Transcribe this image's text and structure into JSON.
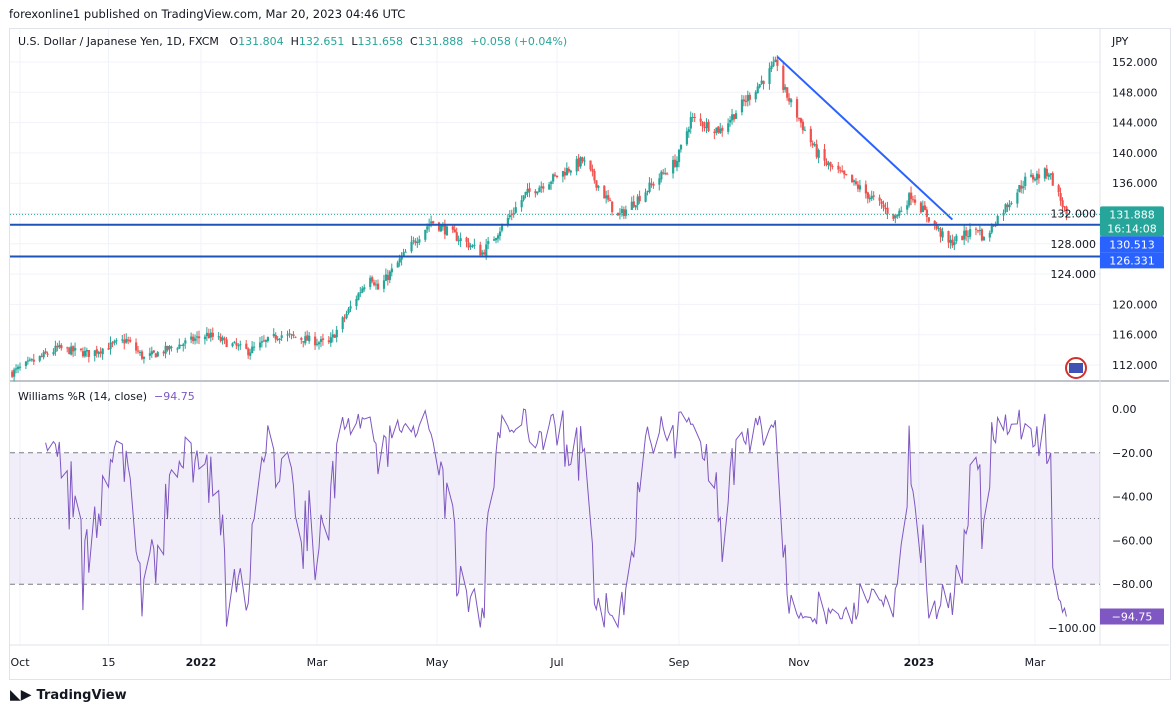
{
  "published": "forexonline1 published on TradingView.com, Mar 20, 2023 04:46 UTC",
  "legend": {
    "symbol": "U.S. Dollar / Japanese Yen, 1D, FXCM",
    "o_label": "O",
    "o": "131.804",
    "h_label": "H",
    "h": "132.651",
    "l_label": "L",
    "l": "131.658",
    "c_label": "C",
    "c": "131.888",
    "change": "+0.058 (+0.04%)"
  },
  "indicator": {
    "label": "Williams %R (14, close)",
    "value": "−94.75",
    "color": "#7e57c2"
  },
  "currency": "JPY",
  "price_badge": {
    "price": "131.888",
    "countdown": "16:14:08",
    "color": "#26a69a"
  },
  "level_badges": [
    {
      "value": "130.513",
      "color": "#2962ff"
    },
    {
      "value": "126.331",
      "color": "#2962ff"
    }
  ],
  "footer_brand": "TradingView",
  "colors": {
    "up": "#26a69a",
    "down": "#ef5350",
    "lines": "#1e53b8",
    "trendline": "#2962ff"
  },
  "chart_data": [
    {
      "type": "candlestick",
      "title": "U.S. Dollar / Japanese Yen, 1D, FXCM",
      "ylim": [
        110,
        154
      ],
      "yticks": [
        "152.000",
        "148.000",
        "144.000",
        "140.000",
        "136.000",
        "132.000",
        "128.000",
        "124.000",
        "120.000",
        "116.000",
        "112.000"
      ],
      "xticks": [
        "Oct",
        "15",
        "2022",
        "Mar",
        "May",
        "Jul",
        "Sep",
        "Nov",
        "2023",
        "Mar"
      ],
      "close_waypoints": [
        [
          "2021-09-27",
          111.0
        ],
        [
          "2021-10-20",
          114.2
        ],
        [
          "2021-11-05",
          113.5
        ],
        [
          "2021-11-24",
          115.3
        ],
        [
          "2021-12-03",
          112.9
        ],
        [
          "2022-01-04",
          116.0
        ],
        [
          "2022-01-25",
          113.8
        ],
        [
          "2022-02-10",
          116.0
        ],
        [
          "2022-03-07",
          114.8
        ],
        [
          "2022-03-28",
          124.0
        ],
        [
          "2022-04-01",
          122.0
        ],
        [
          "2022-04-20",
          128.5
        ],
        [
          "2022-04-28",
          131.0
        ],
        [
          "2022-05-24",
          126.8
        ],
        [
          "2022-06-15",
          134.5
        ],
        [
          "2022-06-28",
          136.5
        ],
        [
          "2022-07-14",
          139.0
        ],
        [
          "2022-08-01",
          131.5
        ],
        [
          "2022-08-31",
          139.0
        ],
        [
          "2022-09-07",
          144.5
        ],
        [
          "2022-09-22",
          143.0
        ],
        [
          "2022-10-21",
          151.9
        ],
        [
          "2022-10-24",
          148.5
        ],
        [
          "2022-11-10",
          140.0
        ],
        [
          "2022-11-15",
          138.5
        ],
        [
          "2022-12-01",
          135.5
        ],
        [
          "2022-12-20",
          131.5
        ],
        [
          "2022-12-28",
          134.5
        ],
        [
          "2023-01-16",
          128.0
        ],
        [
          "2023-01-31",
          130.1
        ],
        [
          "2023-02-03",
          128.5
        ],
        [
          "2023-02-10",
          131.5
        ],
        [
          "2023-02-24",
          136.4
        ],
        [
          "2023-03-08",
          137.5
        ],
        [
          "2023-03-17",
          131.888
        ]
      ],
      "horizontal_levels": [
        130.513,
        126.331
      ],
      "trendline": [
        [
          "2022-10-21",
          152.7
        ],
        [
          "2023-01-18",
          131.2
        ]
      ]
    },
    {
      "type": "line",
      "title": "Williams %R (14, close)",
      "ylim": [
        -100,
        0
      ],
      "yticks": [
        "0.00",
        "−20.00",
        "−40.00",
        "−60.00",
        "−80.00",
        "−100.00"
      ],
      "bands": [
        -20,
        -50,
        -80
      ],
      "last": -94.75
    }
  ]
}
